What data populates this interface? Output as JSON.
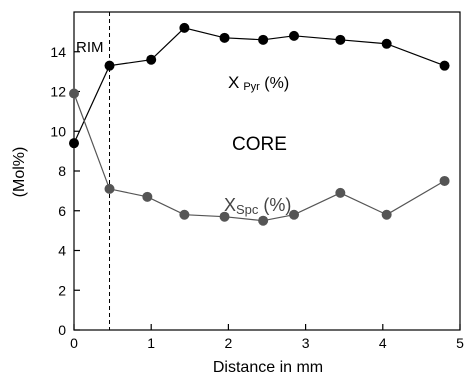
{
  "chart_data": {
    "type": "line",
    "title": "",
    "xlabel": "Distance in mm",
    "ylabel": "(Mol%)",
    "xlim": [
      0,
      5
    ],
    "ylim": [
      0,
      16
    ],
    "x_ticks": [
      "0",
      "1",
      "2",
      "3",
      "4",
      "5"
    ],
    "y_ticks": [
      "0",
      "2",
      "4",
      "6",
      "8",
      "10",
      "12",
      "14"
    ],
    "grid": false,
    "legend": "none",
    "series": [
      {
        "name": "X Pyr (%)",
        "color": "#000000",
        "x": [
          0.0,
          0.46,
          1.0,
          1.43,
          1.95,
          2.45,
          2.85,
          3.45,
          4.05,
          4.8
        ],
        "y": [
          9.4,
          13.3,
          13.6,
          15.2,
          14.7,
          14.6,
          14.8,
          14.6,
          14.4,
          13.3
        ]
      },
      {
        "name": "XSpc (%)",
        "color": "#555555",
        "x": [
          0.0,
          0.46,
          0.95,
          1.43,
          1.95,
          2.45,
          2.85,
          3.45,
          4.05,
          4.8
        ],
        "y": [
          11.9,
          7.1,
          6.7,
          5.8,
          5.7,
          5.5,
          5.8,
          6.9,
          5.8,
          7.5
        ]
      }
    ],
    "annotations": {
      "rim": "RIM",
      "core": "CORE",
      "pyr_main": "X",
      "pyr_sub": "Pyr",
      "pyr_suffix": " (%)",
      "spc_main": "X",
      "spc_sub": "Spc",
      "spc_suffix": " (%)",
      "rim_boundary_x": 0.46
    }
  }
}
